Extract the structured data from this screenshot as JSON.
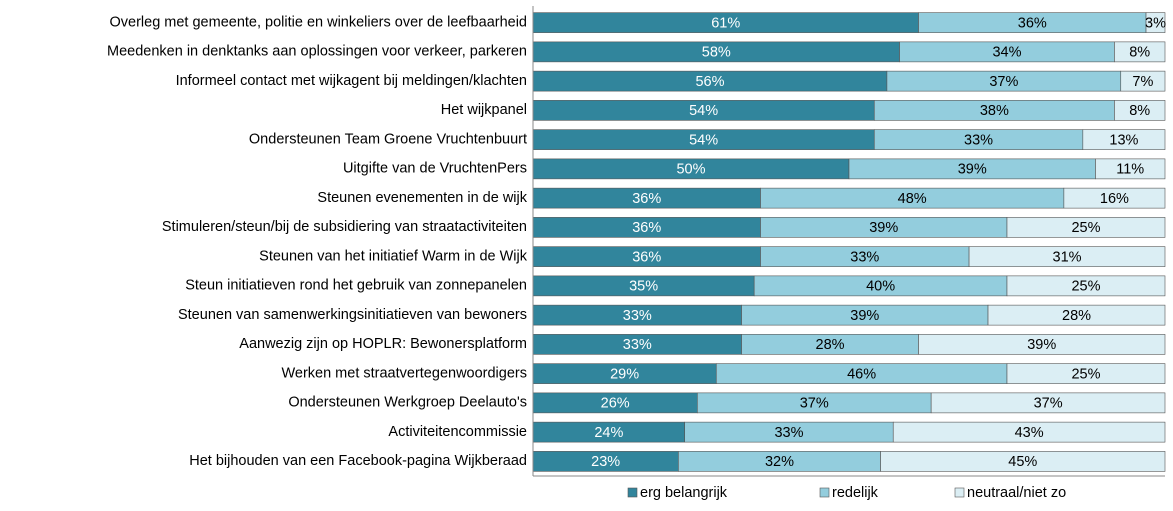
{
  "chart_data": {
    "type": "stacked-barh",
    "categories": [
      "Overleg met gemeente, politie en winkeliers over de leefbaarheid",
      "Meedenken in denktanks aan oplossingen voor verkeer, parkeren",
      "Informeel contact met wijkagent bij meldingen/klachten",
      "Het wijkpanel",
      "Ondersteunen Team Groene Vruchtenbuurt",
      "Uitgifte van de VruchtenPers",
      "Steunen evenementen in de wijk",
      "Stimuleren/steun/bij de subsidiering van straatactiviteiten",
      "Steunen van het initiatief Warm in de Wijk",
      "Steun initiatieven rond het gebruik van zonnepanelen",
      "Steunen van samenwerkingsinitiatieven van bewoners",
      "Aanwezig zijn op HOPLR: Bewonersplatform",
      "Werken met straatvertegenwoordigers",
      "Ondersteunen Werkgroep Deelauto's",
      "Activiteitencommissie",
      "Het bijhouden van een Facebook-pagina Wijkberaad"
    ],
    "series": [
      {
        "name": "erg belangrijk",
        "color": "#31859c",
        "values": [
          61,
          58,
          56,
          54,
          54,
          50,
          36,
          36,
          36,
          35,
          33,
          33,
          29,
          26,
          24,
          23
        ],
        "value_labels": [
          "61%",
          "58%",
          "56%",
          "54%",
          "54%",
          "50%",
          "36%",
          "36%",
          "36%",
          "35%",
          "33%",
          "33%",
          "29%",
          "26%",
          "24%",
          "23%"
        ]
      },
      {
        "name": "redelijk",
        "color": "#93cddd",
        "values": [
          36,
          34,
          37,
          38,
          33,
          39,
          48,
          39,
          33,
          40,
          39,
          28,
          46,
          37,
          33,
          32
        ],
        "value_labels": [
          "36%",
          "34%",
          "37%",
          "38%",
          "33%",
          "39%",
          "48%",
          "39%",
          "33%",
          "40%",
          "39%",
          "28%",
          "46%",
          "37%",
          "33%",
          "32%"
        ]
      },
      {
        "name": "neutraal/niet zo",
        "color": "#dbeef4",
        "values": [
          3,
          8,
          7,
          8,
          13,
          11,
          16,
          25,
          31,
          25,
          28,
          39,
          25,
          37,
          43,
          45
        ],
        "value_labels": [
          "3%",
          "8%",
          "7%",
          "8%",
          "13%",
          "11%",
          "16%",
          "25%",
          "31%",
          "25%",
          "28%",
          "39%",
          "25%",
          "37%",
          "43%",
          "45%"
        ]
      }
    ],
    "xlim": [
      0,
      100
    ],
    "legend": "bottom"
  }
}
